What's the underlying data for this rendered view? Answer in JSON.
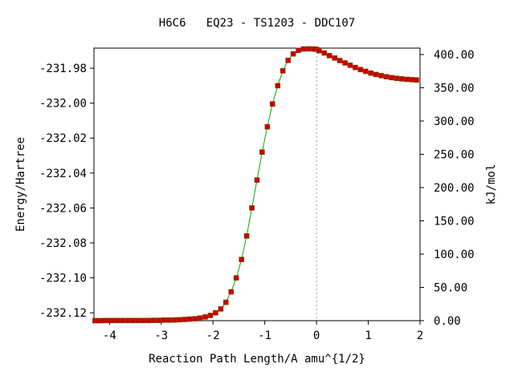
{
  "chart_data": {
    "type": "line",
    "title": "H6C6   EQ23 - TS1203 - DDC107",
    "xlabel": "Reaction Path Length/A amu^{1/2}",
    "ylabel": "Energy/Hartree",
    "y2label": "kJ/mol",
    "xlim": [
      -4.3,
      2.0
    ],
    "ylim": [
      -232.1245,
      -231.9685
    ],
    "y2lim": [
      0,
      409.6
    ],
    "x_ticks": [
      "-4",
      "-3",
      "-2",
      "-1",
      "0",
      "1",
      "2"
    ],
    "y_ticks": [
      "-231.98",
      "-232.00",
      "-232.02",
      "-232.04",
      "-232.06",
      "-232.08",
      "-232.10",
      "-232.12"
    ],
    "y2_ticks": [
      "0.00",
      "50.00",
      "100.00",
      "150.00",
      "200.00",
      "250.00",
      "300.00",
      "350.00",
      "400.00"
    ],
    "ts_marker_x": 0.0,
    "grid": false,
    "colors": {
      "line": "#00aa00",
      "marker": "#cc0000",
      "ts_line": "#999999"
    },
    "series": [
      {
        "x": [
          -4.28,
          -4.23,
          -4.17,
          -4.1,
          -4.02,
          -3.94,
          -3.85,
          -3.75,
          -3.65,
          -3.55,
          -3.45,
          -3.35,
          -3.25,
          -3.15,
          -3.05,
          -2.95,
          -2.85,
          -2.75,
          -2.65,
          -2.55,
          -2.45,
          -2.35,
          -2.25,
          -2.15,
          -2.05,
          -1.95,
          -1.85,
          -1.75,
          -1.65,
          -1.55,
          -1.45,
          -1.35,
          -1.25,
          -1.15,
          -1.05,
          -0.95,
          -0.85,
          -0.75,
          -0.65,
          -0.55,
          -0.45,
          -0.35,
          -0.25,
          -0.15,
          -0.05,
          0.0,
          0.05,
          0.15,
          0.25,
          0.35,
          0.45,
          0.55,
          0.65,
          0.75,
          0.85,
          0.95,
          1.05,
          1.15,
          1.25,
          1.35,
          1.45,
          1.55,
          1.65,
          1.75,
          1.85,
          1.93
        ],
        "y": [
          -232.1245,
          -232.1245,
          -232.1245,
          -232.1244,
          -232.1244,
          -232.1244,
          -232.1244,
          -232.1244,
          -232.1244,
          -232.1244,
          -232.1244,
          -232.1244,
          -232.1244,
          -232.1243,
          -232.1243,
          -232.1242,
          -232.1242,
          -232.1241,
          -232.124,
          -232.1238,
          -232.1236,
          -232.1234,
          -232.123,
          -232.1224,
          -232.1215,
          -232.12,
          -232.1178,
          -232.114,
          -232.108,
          -232.1,
          -232.0895,
          -232.076,
          -232.06,
          -232.044,
          -232.028,
          -232.0135,
          -232.0005,
          -231.99,
          -231.9815,
          -231.9755,
          -231.9718,
          -231.9698,
          -231.969,
          -231.9689,
          -231.969,
          -231.9692,
          -231.97,
          -231.9713,
          -231.9728,
          -231.9742,
          -231.9756,
          -231.977,
          -231.9783,
          -231.9796,
          -231.9808,
          -231.9818,
          -231.9828,
          -231.9836,
          -231.9843,
          -231.9849,
          -231.9854,
          -231.9858,
          -231.9861,
          -231.9864,
          -231.9866,
          -231.9867
        ]
      }
    ]
  }
}
